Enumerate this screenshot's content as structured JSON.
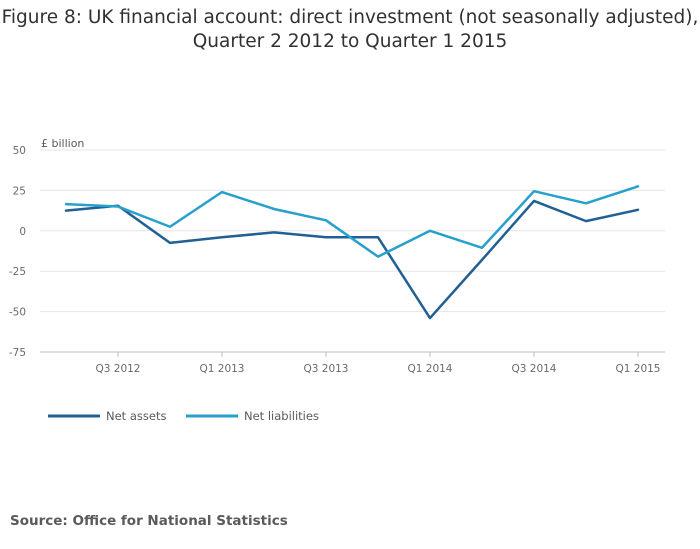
{
  "title": {
    "line1": "Figure 8: UK financial account: direct investment (not seasonally adjusted),",
    "line2": "Quarter 2 2012 to Quarter 1 2015"
  },
  "source": {
    "label": "Source:",
    "text": "Office for National Statistics"
  },
  "colors": {
    "net_assets": "#206095",
    "net_liabilities": "#27a0cc",
    "grid": "#e6e6e6",
    "axis_text": "#6a6a6a"
  },
  "chart_data": {
    "type": "line",
    "ylabel": "£ billion",
    "ylim": [
      -75,
      50
    ],
    "yticks": [
      50,
      25,
      0,
      -25,
      -50,
      -75
    ],
    "ytick_labels": [
      "50",
      "25",
      "0",
      "-25",
      "-50",
      "-75"
    ],
    "grid": true,
    "legend_position": "bottom-left",
    "x": [
      "Q2 2012",
      "Q3 2012",
      "Q4 2012",
      "Q1 2013",
      "Q2 2013",
      "Q3 2013",
      "Q4 2013",
      "Q1 2014",
      "Q2 2014",
      "Q3 2014",
      "Q4 2014",
      "Q1 2015"
    ],
    "xtick_labels": [
      "",
      "Q3 2012",
      "",
      "Q1 2013",
      "",
      "Q3 2013",
      "",
      "Q1 2014",
      "",
      "Q3 2014",
      "",
      "Q1 2015"
    ],
    "series": [
      {
        "name": "Net assets",
        "values": [
          12.5,
          15.5,
          -7.5,
          -4,
          -1,
          -4,
          -4,
          -54,
          -18,
          18.5,
          6,
          13
        ]
      },
      {
        "name": "Net liabilities",
        "values": [
          16.5,
          15,
          2.5,
          24,
          13.5,
          6.5,
          -16,
          0,
          -10.5,
          24.5,
          17,
          27.5
        ]
      }
    ]
  }
}
